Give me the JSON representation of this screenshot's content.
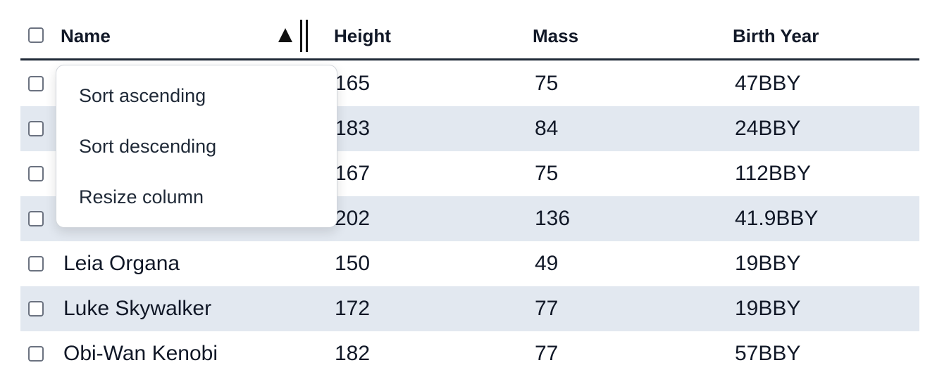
{
  "table": {
    "columns": [
      "Name",
      "Height",
      "Mass",
      "Birth Year"
    ],
    "rows": [
      [
        null,
        165,
        75,
        "47BBY"
      ],
      [
        null,
        183,
        84,
        "24BBY"
      ],
      [
        null,
        167,
        75,
        "112BBY"
      ],
      [
        null,
        202,
        136,
        "41.9BBY"
      ],
      [
        "Leia Organa",
        150,
        49,
        "19BBY"
      ],
      [
        "Luke Skywalker",
        172,
        77,
        "19BBY"
      ],
      [
        "Obi-Wan Kenobi",
        182,
        77,
        "57BBY"
      ]
    ]
  },
  "menu": {
    "items": [
      "Sort ascending",
      "Sort descending",
      "Resize column"
    ]
  }
}
